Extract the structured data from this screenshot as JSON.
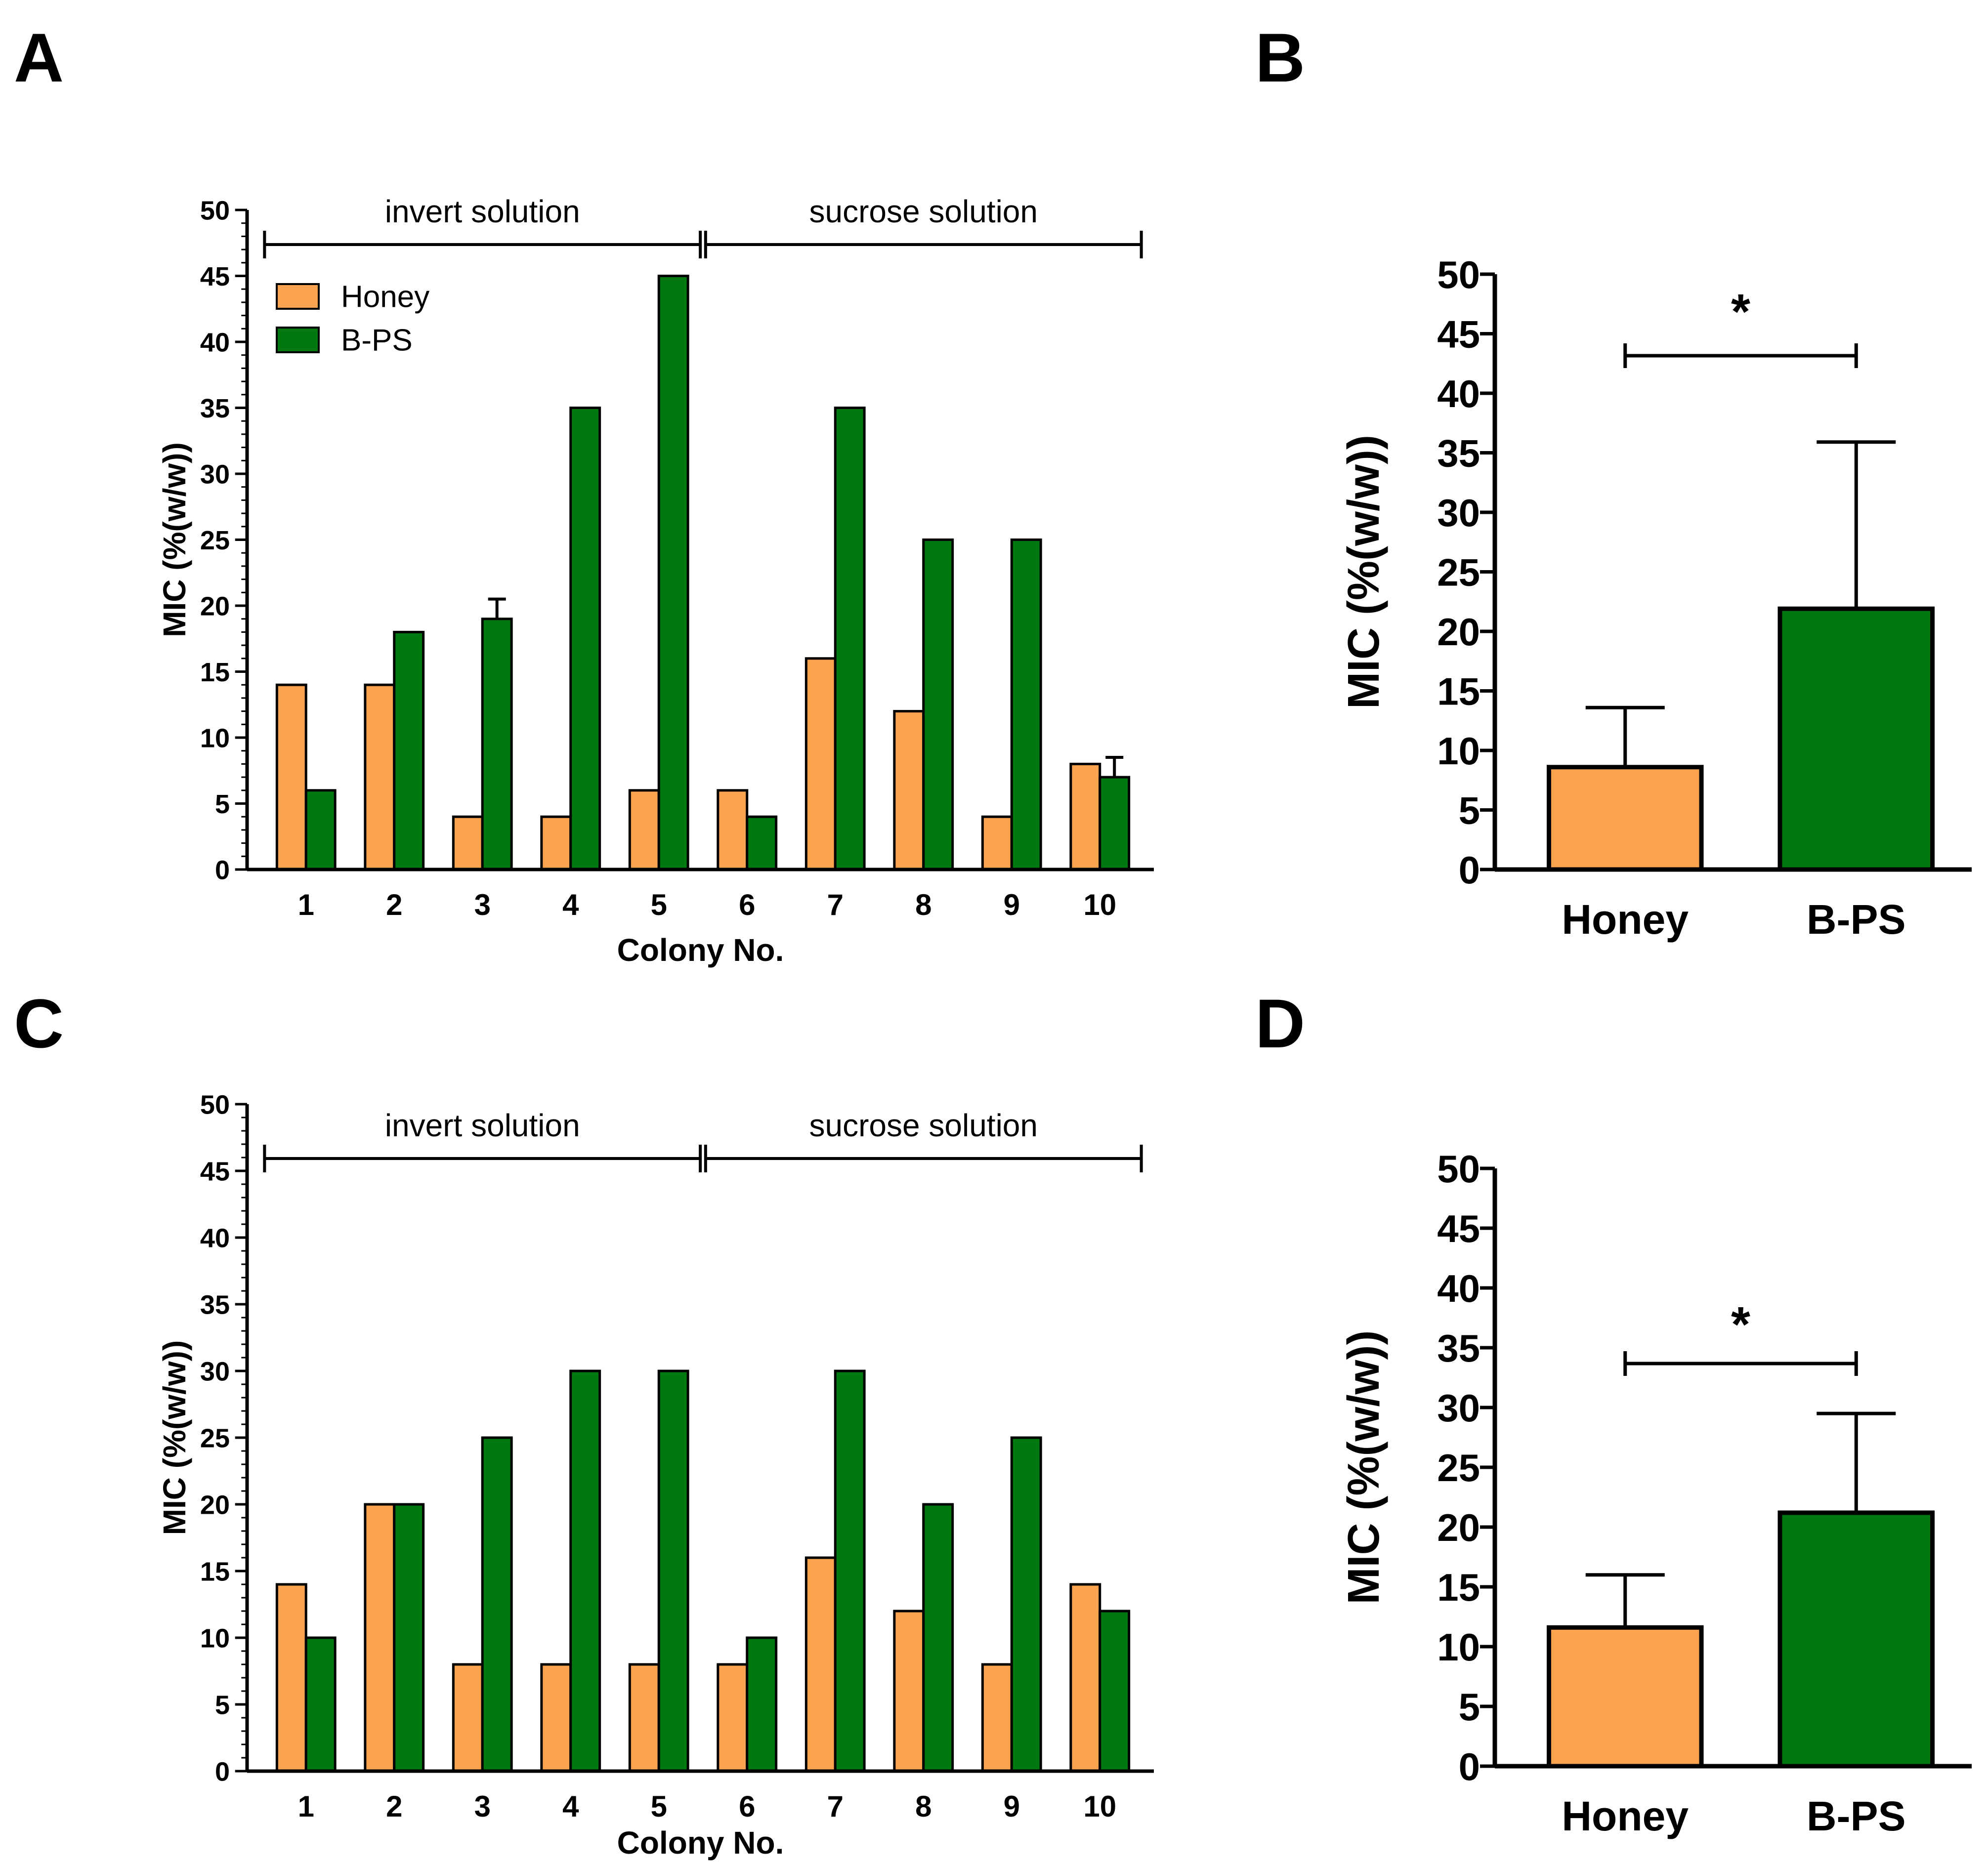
{
  "colors": {
    "honey": "#FBA34E",
    "bps": "#007A10",
    "axis": "#000000"
  },
  "chart_data": [
    {
      "panel": "A",
      "type": "bar",
      "title": "",
      "xlabel": "Colony No.",
      "ylabel": "MIC (%(w/w))",
      "ylim": [
        0,
        50
      ],
      "yticks": [
        "0",
        "5",
        "10",
        "15",
        "20",
        "25",
        "30",
        "35",
        "40",
        "45",
        "50"
      ],
      "categories": [
        "1",
        "2",
        "3",
        "4",
        "5",
        "6",
        "7",
        "8",
        "9",
        "10"
      ],
      "series": [
        {
          "name": "Honey",
          "values": [
            14,
            14,
            4,
            4,
            6,
            6,
            16,
            12,
            4,
            8
          ],
          "errors": [
            0,
            0,
            0,
            0,
            0,
            0,
            0,
            0,
            0,
            0
          ]
        },
        {
          "name": "B-PS",
          "values": [
            6,
            18,
            19,
            35,
            45,
            4,
            35,
            25,
            25,
            7
          ],
          "errors": [
            0,
            0,
            1.5,
            0,
            0,
            0,
            0,
            0,
            0,
            1.5
          ]
        }
      ],
      "legend": [
        "Honey",
        "B-PS"
      ],
      "legend_position": "top-left",
      "groups": [
        {
          "label": "invert solution",
          "from": "1",
          "to": "5"
        },
        {
          "label": "sucrose solution",
          "from": "6",
          "to": "10"
        }
      ]
    },
    {
      "panel": "B",
      "type": "bar",
      "title": "",
      "xlabel": "",
      "ylabel": "MIC (%(w/w))",
      "ylim": [
        0,
        50
      ],
      "yticks": [
        "0",
        "5",
        "10",
        "15",
        "20",
        "25",
        "30",
        "35",
        "40",
        "45",
        "50"
      ],
      "categories": [
        "Honey",
        "B-PS"
      ],
      "values": [
        8.6,
        21.9
      ],
      "errors": [
        5.0,
        14.0
      ],
      "significance": {
        "symbol": "*",
        "between": [
          "Honey",
          "B-PS"
        ]
      }
    },
    {
      "panel": "C",
      "type": "bar",
      "title": "",
      "xlabel": "Colony No.",
      "ylabel": "MIC (%(w/w))",
      "ylim": [
        0,
        50
      ],
      "yticks": [
        "0",
        "5",
        "10",
        "15",
        "20",
        "25",
        "30",
        "35",
        "40",
        "45",
        "50"
      ],
      "categories": [
        "1",
        "2",
        "3",
        "4",
        "5",
        "6",
        "7",
        "8",
        "9",
        "10"
      ],
      "series": [
        {
          "name": "Honey",
          "values": [
            14,
            20,
            8,
            8,
            8,
            8,
            16,
            12,
            8,
            14
          ],
          "errors": [
            0,
            0,
            0,
            0,
            0,
            0,
            0,
            0,
            0,
            0
          ]
        },
        {
          "name": "B-PS",
          "values": [
            10,
            20,
            25,
            30,
            30,
            10,
            30,
            20,
            25,
            12
          ],
          "errors": [
            0,
            0,
            0,
            0,
            0,
            0,
            0,
            0,
            0,
            0
          ]
        }
      ],
      "groups": [
        {
          "label": "invert solution",
          "from": "1",
          "to": "5"
        },
        {
          "label": "sucrose solution",
          "from": "6",
          "to": "10"
        }
      ]
    },
    {
      "panel": "D",
      "type": "bar",
      "title": "",
      "xlabel": "",
      "ylabel": "MIC (%(w/w))",
      "ylim": [
        0,
        50
      ],
      "yticks": [
        "0",
        "5",
        "10",
        "15",
        "20",
        "25",
        "30",
        "35",
        "40",
        "45",
        "50"
      ],
      "categories": [
        "Honey",
        "B-PS"
      ],
      "values": [
        11.6,
        21.2
      ],
      "errors": [
        4.4,
        8.3
      ],
      "significance": {
        "symbol": "*",
        "between": [
          "Honey",
          "B-PS"
        ]
      }
    }
  ]
}
